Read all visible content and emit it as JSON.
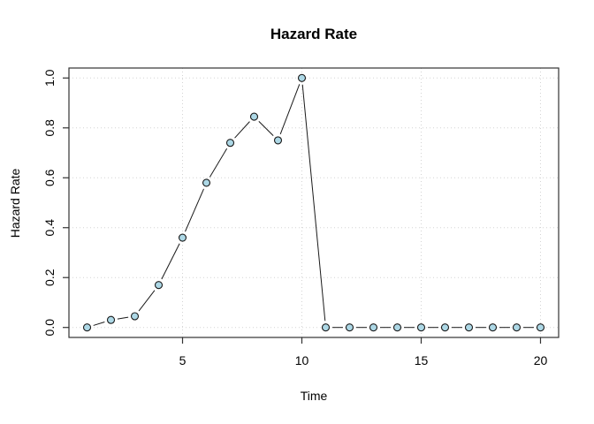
{
  "page": {
    "background": "#ffffff"
  },
  "chart_data": {
    "type": "line",
    "style": "R base plot, type='b' (points joined by gapped line segments)",
    "title": "Hazard Rate",
    "xlabel": "Time",
    "ylabel": "Hazard Rate",
    "x": [
      1,
      2,
      3,
      4,
      5,
      6,
      7,
      8,
      9,
      10,
      11,
      12,
      13,
      14,
      15,
      16,
      17,
      18,
      19,
      20
    ],
    "values": [
      0,
      0.03,
      0.045,
      0.17,
      0.36,
      0.58,
      0.74,
      0.845,
      0.75,
      1.0,
      0,
      0,
      0,
      0,
      0,
      0,
      0,
      0,
      0,
      0
    ],
    "x_ticks": [
      "5",
      "10",
      "15",
      "20"
    ],
    "y_ticks": [
      "0.0",
      "0.2",
      "0.4",
      "0.6",
      "0.8",
      "1.0"
    ],
    "xlim": [
      1,
      20
    ],
    "ylim": [
      0,
      1
    ],
    "grid": true,
    "grid_style": "dotted",
    "legend_position": "none",
    "colors": {
      "marker_fill": "#ADD8E6",
      "marker_stroke": "#1a1a1a",
      "line": "#1a1a1a",
      "grid": "#d4d4d4",
      "box": "#333333",
      "text": "#000000"
    }
  }
}
